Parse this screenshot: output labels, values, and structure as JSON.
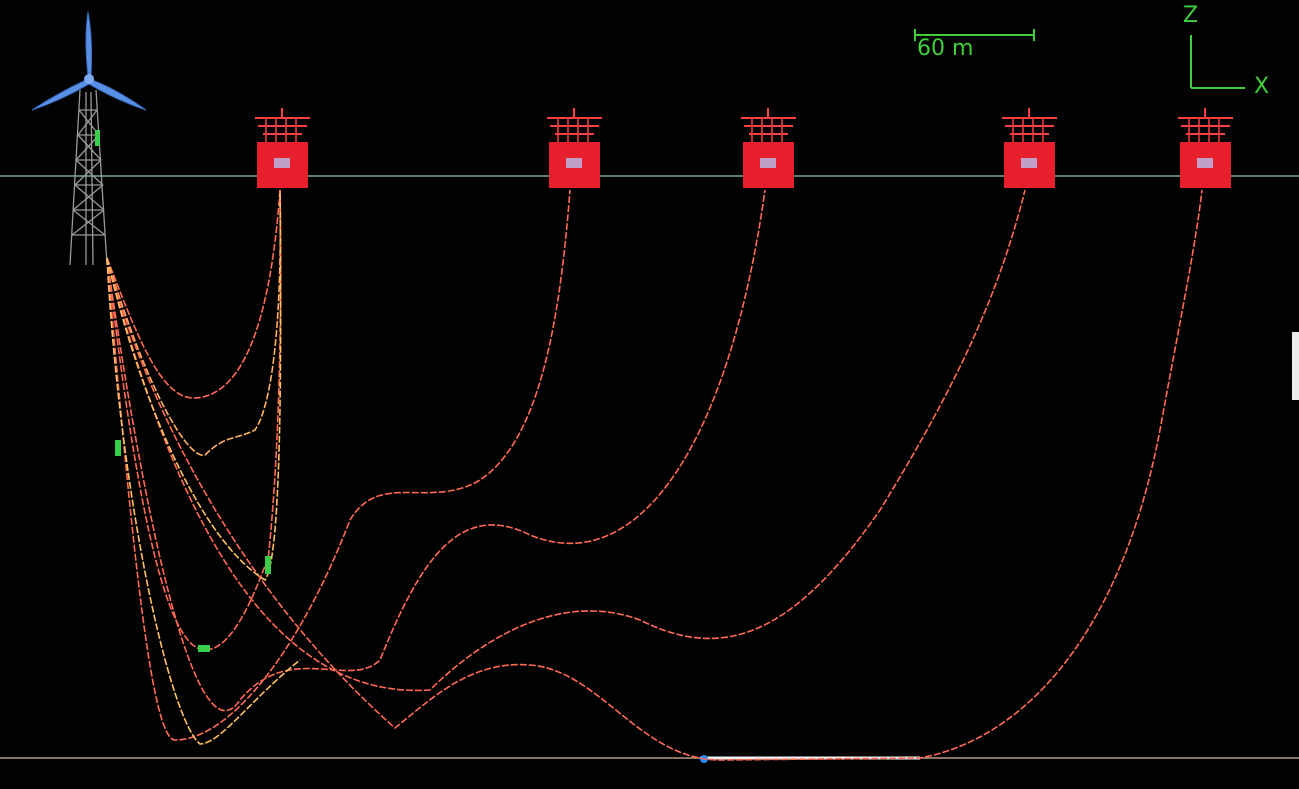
{
  "view": {
    "scale_bar_label": "60 m",
    "axis_z_label": "Z",
    "axis_x_label": "X",
    "background_color": "#020202",
    "axis_color": "#3fcf3a",
    "sea_surface_color": "#7aa8a6",
    "seabed_color": "#b89a7e",
    "cable_color": "#ff6a55",
    "buoy_color": "#e8202e",
    "turbine_color": "#5a8fe6"
  },
  "scene": {
    "turbine": "wind-turbine-icon",
    "buoy_count": 5,
    "cable_count": 5
  }
}
